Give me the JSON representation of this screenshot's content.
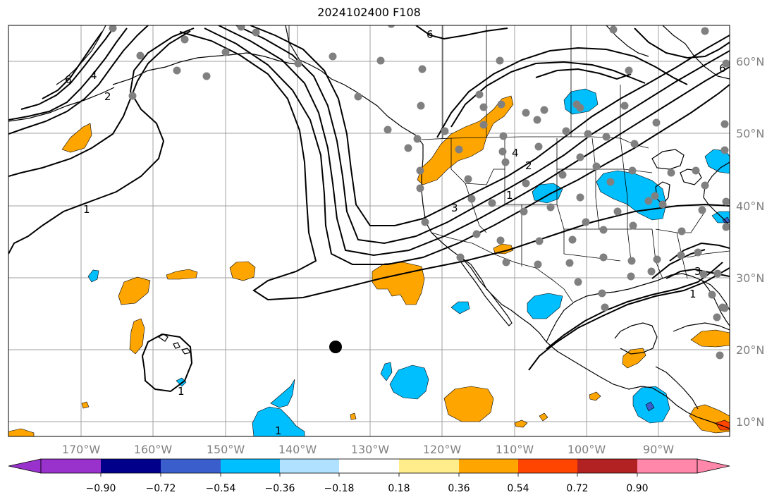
{
  "title": "2024102400 F108",
  "lon_ticks": [
    "170°W",
    "160°W",
    "150°W",
    "140°W",
    "130°W",
    "120°W",
    "110°W",
    "100°W",
    "90°W"
  ],
  "lat_ticks": [
    "60°N",
    "50°N",
    "40°N",
    "30°N",
    "20°N",
    "10°N"
  ],
  "colorbar": {
    "colors": [
      "#9932cc",
      "#00008b",
      "#3a5fcd",
      "#00bfff",
      "#b0e2ff",
      "#ffffff",
      "#ffec8b",
      "#ffa500",
      "#ff4500",
      "#b22222",
      "#ff88aa"
    ],
    "labels": [
      "−0.90",
      "−0.72",
      "−0.54",
      "−0.36",
      "−0.18",
      "0.18",
      "0.36",
      "0.54",
      "0.72",
      "0.90"
    ]
  },
  "contour_labels": [
    "6",
    "4",
    "2",
    "6",
    "1",
    "3",
    "4",
    "2",
    "1",
    "1",
    "1",
    "3",
    "1",
    "6"
  ],
  "colors": {
    "grid": "#a0a0a0",
    "coast": "#000000",
    "station": "#808080",
    "positive": "#ffa500",
    "negative": "#00bfff",
    "strong_negative": "#3a5fcd",
    "strong_positive": "#ff4500"
  }
}
